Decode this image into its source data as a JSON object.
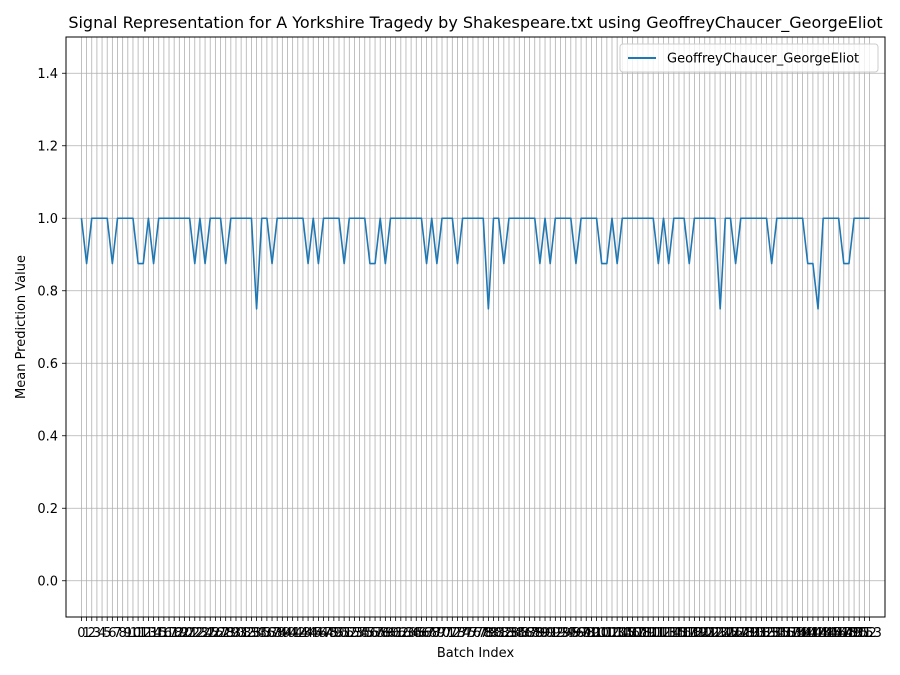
{
  "chart_data": {
    "type": "line",
    "title": "Signal Representation for A Yorkshire Tragedy by Shakespeare.txt using GeoffreyChaucer_GeorgeEliot",
    "xlabel": "Batch Index",
    "ylabel": "Mean Prediction Value",
    "xlim": [
      -3,
      156
    ],
    "ylim": [
      -0.1,
      1.5
    ],
    "yticks": [
      0.0,
      0.2,
      0.4,
      0.6,
      0.8,
      1.0,
      1.2,
      1.4
    ],
    "ytick_labels": [
      "0.0",
      "0.2",
      "0.4",
      "0.6",
      "0.8",
      "1.0",
      "1.2",
      "1.4"
    ],
    "grid": true,
    "legend_position": "top-right",
    "colors": {
      "series": "#1f77b4",
      "grid": "#b0b0b0"
    },
    "series": [
      {
        "name": "GeoffreyChaucer_GeorgeEliot",
        "x": [
          0,
          1,
          2,
          3,
          4,
          5,
          6,
          7,
          8,
          9,
          10,
          11,
          12,
          13,
          14,
          15,
          16,
          17,
          18,
          19,
          20,
          21,
          22,
          23,
          24,
          25,
          26,
          27,
          28,
          29,
          30,
          31,
          32,
          33,
          34,
          35,
          36,
          37,
          38,
          39,
          40,
          41,
          42,
          43,
          44,
          45,
          46,
          47,
          48,
          49,
          50,
          51,
          52,
          53,
          54,
          55,
          56,
          57,
          58,
          59,
          60,
          61,
          62,
          63,
          64,
          65,
          66,
          67,
          68,
          69,
          70,
          71,
          72,
          73,
          74,
          75,
          76,
          77,
          78,
          79,
          80,
          81,
          82,
          83,
          84,
          85,
          86,
          87,
          88,
          89,
          90,
          91,
          92,
          93,
          94,
          95,
          96,
          97,
          98,
          99,
          100,
          101,
          102,
          103,
          104,
          105,
          106,
          107,
          108,
          109,
          110,
          111,
          112,
          113,
          114,
          115,
          116,
          117,
          118,
          119,
          120,
          121,
          122,
          123,
          124,
          125,
          126,
          127,
          128,
          129,
          130,
          131,
          132,
          133,
          134,
          135,
          136,
          137,
          138,
          139,
          140,
          141,
          142,
          143,
          144,
          145,
          146,
          147,
          148,
          149,
          150,
          151,
          152,
          153
        ],
        "values": [
          1.0,
          0.875,
          1.0,
          1.0,
          1.0,
          1.0,
          0.875,
          1.0,
          1.0,
          1.0,
          1.0,
          0.875,
          0.875,
          1.0,
          0.875,
          1.0,
          1.0,
          1.0,
          1.0,
          1.0,
          1.0,
          1.0,
          0.875,
          1.0,
          0.875,
          1.0,
          1.0,
          1.0,
          0.875,
          1.0,
          1.0,
          1.0,
          1.0,
          1.0,
          0.75,
          1.0,
          1.0,
          0.875,
          1.0,
          1.0,
          1.0,
          1.0,
          1.0,
          1.0,
          0.875,
          1.0,
          0.875,
          1.0,
          1.0,
          1.0,
          1.0,
          0.875,
          1.0,
          1.0,
          1.0,
          1.0,
          0.875,
          0.875,
          1.0,
          0.875,
          1.0,
          1.0,
          1.0,
          1.0,
          1.0,
          1.0,
          1.0,
          0.875,
          1.0,
          0.875,
          1.0,
          1.0,
          1.0,
          0.875,
          1.0,
          1.0,
          1.0,
          1.0,
          1.0,
          0.75,
          1.0,
          1.0,
          0.875,
          1.0,
          1.0,
          1.0,
          1.0,
          1.0,
          1.0,
          0.875,
          1.0,
          0.875,
          1.0,
          1.0,
          1.0,
          1.0,
          0.875,
          1.0,
          1.0,
          1.0,
          1.0,
          0.875,
          0.875,
          1.0,
          0.875,
          1.0,
          1.0,
          1.0,
          1.0,
          1.0,
          1.0,
          1.0,
          0.875,
          1.0,
          0.875,
          1.0,
          1.0,
          1.0,
          0.875,
          1.0,
          1.0,
          1.0,
          1.0,
          1.0,
          0.75,
          1.0,
          1.0,
          0.875,
          1.0,
          1.0,
          1.0,
          1.0,
          1.0,
          1.0,
          0.875,
          1.0,
          1.0,
          1.0,
          1.0,
          1.0,
          1.0,
          0.875,
          0.875,
          0.75,
          1.0,
          1.0,
          1.0,
          1.0,
          0.875,
          0.875,
          1.0,
          1.0,
          1.0,
          1.0
        ]
      }
    ]
  }
}
